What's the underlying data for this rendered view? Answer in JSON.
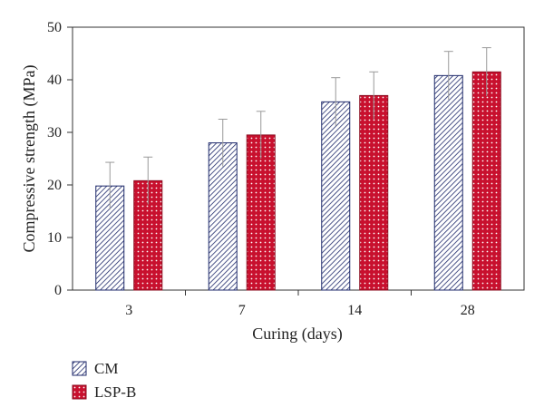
{
  "chart_data": {
    "type": "bar",
    "title": "",
    "xlabel": "Curing (days)",
    "ylabel": "Compressive strength (MPa)",
    "categories": [
      "3",
      "7",
      "14",
      "28"
    ],
    "ylim": [
      0,
      50
    ],
    "yticks": [
      "0",
      "10",
      "20",
      "30",
      "40",
      "50"
    ],
    "grid": false,
    "legend_position": "bottom-left",
    "series": [
      {
        "name": "CM",
        "values": [
          19.8,
          28.0,
          35.8,
          40.8
        ],
        "errors": [
          4.5,
          4.5,
          4.6,
          4.6
        ],
        "pattern": "diagonal-hatch",
        "color": "#1f2a6b"
      },
      {
        "name": "LSP-B",
        "values": [
          20.8,
          29.5,
          37.0,
          41.5
        ],
        "errors": [
          4.5,
          4.5,
          4.5,
          4.6
        ],
        "pattern": "dotted",
        "color": "#c8102e"
      }
    ]
  }
}
